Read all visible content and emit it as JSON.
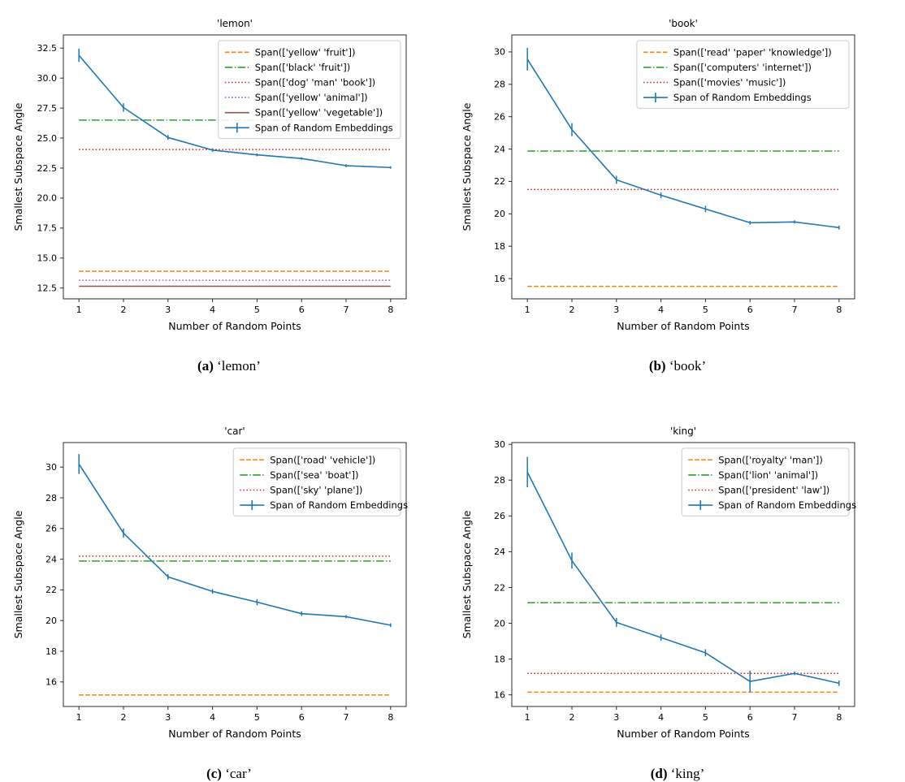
{
  "page": {
    "background": "#ffffff"
  },
  "colors": {
    "blue": "#1f77b4",
    "orange": "#ff7f0e",
    "green": "#2ca02c",
    "red": "#d62728",
    "purple": "#9467bd",
    "brown": "#8c564b",
    "spine": "#2b2b2b",
    "legend_border": "#cccccc"
  },
  "figures": [
    {
      "caption_label": "(a)",
      "caption_word": "‘lemon’"
    },
    {
      "caption_label": "(b)",
      "caption_word": "‘book’"
    },
    {
      "caption_label": "(c)",
      "caption_word": "‘car’"
    },
    {
      "caption_label": "(d)",
      "caption_word": "‘king’"
    }
  ],
  "chart_data": [
    {
      "type": "line",
      "title": "'lemon'",
      "xlabel": "Number of Random Points",
      "ylabel": "Smallest Subspace Angle",
      "x": [
        1,
        2,
        3,
        4,
        5,
        6,
        7,
        8
      ],
      "xlim": [
        0.65,
        8.35
      ],
      "ylim": [
        11.6,
        33.6
      ],
      "yticks": [
        12.5,
        15.0,
        17.5,
        20.0,
        22.5,
        25.0,
        27.5,
        30.0,
        32.5
      ],
      "ytick_labels": [
        "12.5",
        "15.0",
        "17.5",
        "20.0",
        "22.5",
        "25.0",
        "27.5",
        "30.0",
        "32.5"
      ],
      "grid": false,
      "legend_position": "upper right",
      "hlines": [
        {
          "label": "Span(['yellow' 'fruit'])",
          "value": 13.9,
          "color": "#ff7f0e",
          "style": "dashed"
        },
        {
          "label": "Span(['black' 'fruit'])",
          "value": 26.5,
          "color": "#2ca02c",
          "style": "dashdot"
        },
        {
          "label": "Span(['dog' 'man' 'book'])",
          "value": 24.05,
          "color": "#d62728",
          "style": "dotted"
        },
        {
          "label": "Span(['yellow' 'animal'])",
          "value": 13.15,
          "color": "#9467bd",
          "style": "dotted"
        },
        {
          "label": "Span(['yellow' 'vegetable'])",
          "value": 12.65,
          "color": "#8c564b",
          "style": "solid"
        }
      ],
      "series": [
        {
          "name": "Span of Random Embeddings",
          "color": "#1f77b4",
          "values": [
            31.9,
            27.55,
            25.05,
            24.0,
            23.6,
            23.3,
            22.7,
            22.55
          ],
          "yerr": [
            0.55,
            0.35,
            0.2,
            0.15,
            0.12,
            0.1,
            0.12,
            0.1
          ]
        }
      ]
    },
    {
      "type": "line",
      "title": "'book'",
      "xlabel": "Number of Random Points",
      "ylabel": "Smallest Subspace Angle",
      "x": [
        1,
        2,
        3,
        4,
        5,
        6,
        7,
        8
      ],
      "xlim": [
        0.65,
        8.35
      ],
      "ylim": [
        14.75,
        31.05
      ],
      "yticks": [
        16,
        18,
        20,
        22,
        24,
        26,
        28,
        30
      ],
      "ytick_labels": [
        "16",
        "18",
        "20",
        "22",
        "24",
        "26",
        "28",
        "30"
      ],
      "grid": false,
      "legend_position": "upper right",
      "hlines": [
        {
          "label": "Span(['read' 'paper' 'knowledge'])",
          "value": 15.52,
          "color": "#ff7f0e",
          "style": "dashed"
        },
        {
          "label": "Span(['computers' 'internet'])",
          "value": 23.88,
          "color": "#2ca02c",
          "style": "dashdot"
        },
        {
          "label": "Span(['movies' 'music'])",
          "value": 21.5,
          "color": "#d62728",
          "style": "dotted"
        }
      ],
      "series": [
        {
          "name": "Span of Random Embeddings",
          "color": "#1f77b4",
          "values": [
            29.55,
            25.2,
            22.1,
            21.15,
            20.3,
            19.45,
            19.5,
            19.15
          ],
          "yerr": [
            0.7,
            0.4,
            0.25,
            0.18,
            0.2,
            0.12,
            0.1,
            0.12
          ]
        }
      ]
    },
    {
      "type": "line",
      "title": "'car'",
      "xlabel": "Number of Random Points",
      "ylabel": "Smallest Subspace Angle",
      "x": [
        1,
        2,
        3,
        4,
        5,
        6,
        7,
        8
      ],
      "xlim": [
        0.65,
        8.35
      ],
      "ylim": [
        14.4,
        31.6
      ],
      "yticks": [
        16,
        18,
        20,
        22,
        24,
        26,
        28,
        30
      ],
      "ytick_labels": [
        "16",
        "18",
        "20",
        "22",
        "24",
        "26",
        "28",
        "30"
      ],
      "grid": false,
      "legend_position": "upper right",
      "hlines": [
        {
          "label": "Span(['road' 'vehicle'])",
          "value": 15.15,
          "color": "#ff7f0e",
          "style": "dashed"
        },
        {
          "label": "Span(['sea' 'boat'])",
          "value": 23.88,
          "color": "#2ca02c",
          "style": "dashdot"
        },
        {
          "label": "Span(['sky' 'plane'])",
          "value": 24.2,
          "color": "#d62728",
          "style": "dotted"
        }
      ],
      "series": [
        {
          "name": "Span of Random Embeddings",
          "color": "#1f77b4",
          "values": [
            30.2,
            25.7,
            22.85,
            21.9,
            21.2,
            20.45,
            20.25,
            19.7
          ],
          "yerr": [
            0.65,
            0.3,
            0.18,
            0.15,
            0.2,
            0.15,
            0.1,
            0.12
          ]
        }
      ]
    },
    {
      "type": "line",
      "title": "'king'",
      "xlabel": "Number of Random Points",
      "ylabel": "Smallest Subspace Angle",
      "x": [
        1,
        2,
        3,
        4,
        5,
        6,
        7,
        8
      ],
      "xlim": [
        0.65,
        8.35
      ],
      "ylim": [
        15.35,
        30.1
      ],
      "yticks": [
        16,
        18,
        20,
        22,
        24,
        26,
        28,
        30
      ],
      "ytick_labels": [
        "16",
        "18",
        "20",
        "22",
        "24",
        "26",
        "28",
        "30"
      ],
      "grid": false,
      "legend_position": "upper right",
      "hlines": [
        {
          "label": "Span(['royalty' 'man'])",
          "value": 16.15,
          "color": "#ff7f0e",
          "style": "dashed"
        },
        {
          "label": "Span(['lion' 'animal'])",
          "value": 21.15,
          "color": "#2ca02c",
          "style": "dashdot"
        },
        {
          "label": "Span(['president' 'law'])",
          "value": 17.2,
          "color": "#d62728",
          "style": "dotted"
        }
      ],
      "series": [
        {
          "name": "Span of Random Embeddings",
          "color": "#1f77b4",
          "values": [
            28.45,
            23.5,
            20.05,
            19.2,
            18.35,
            16.75,
            17.2,
            16.65
          ],
          "yerr": [
            0.85,
            0.45,
            0.25,
            0.18,
            0.2,
            0.6,
            0.1,
            0.15
          ]
        }
      ]
    }
  ]
}
